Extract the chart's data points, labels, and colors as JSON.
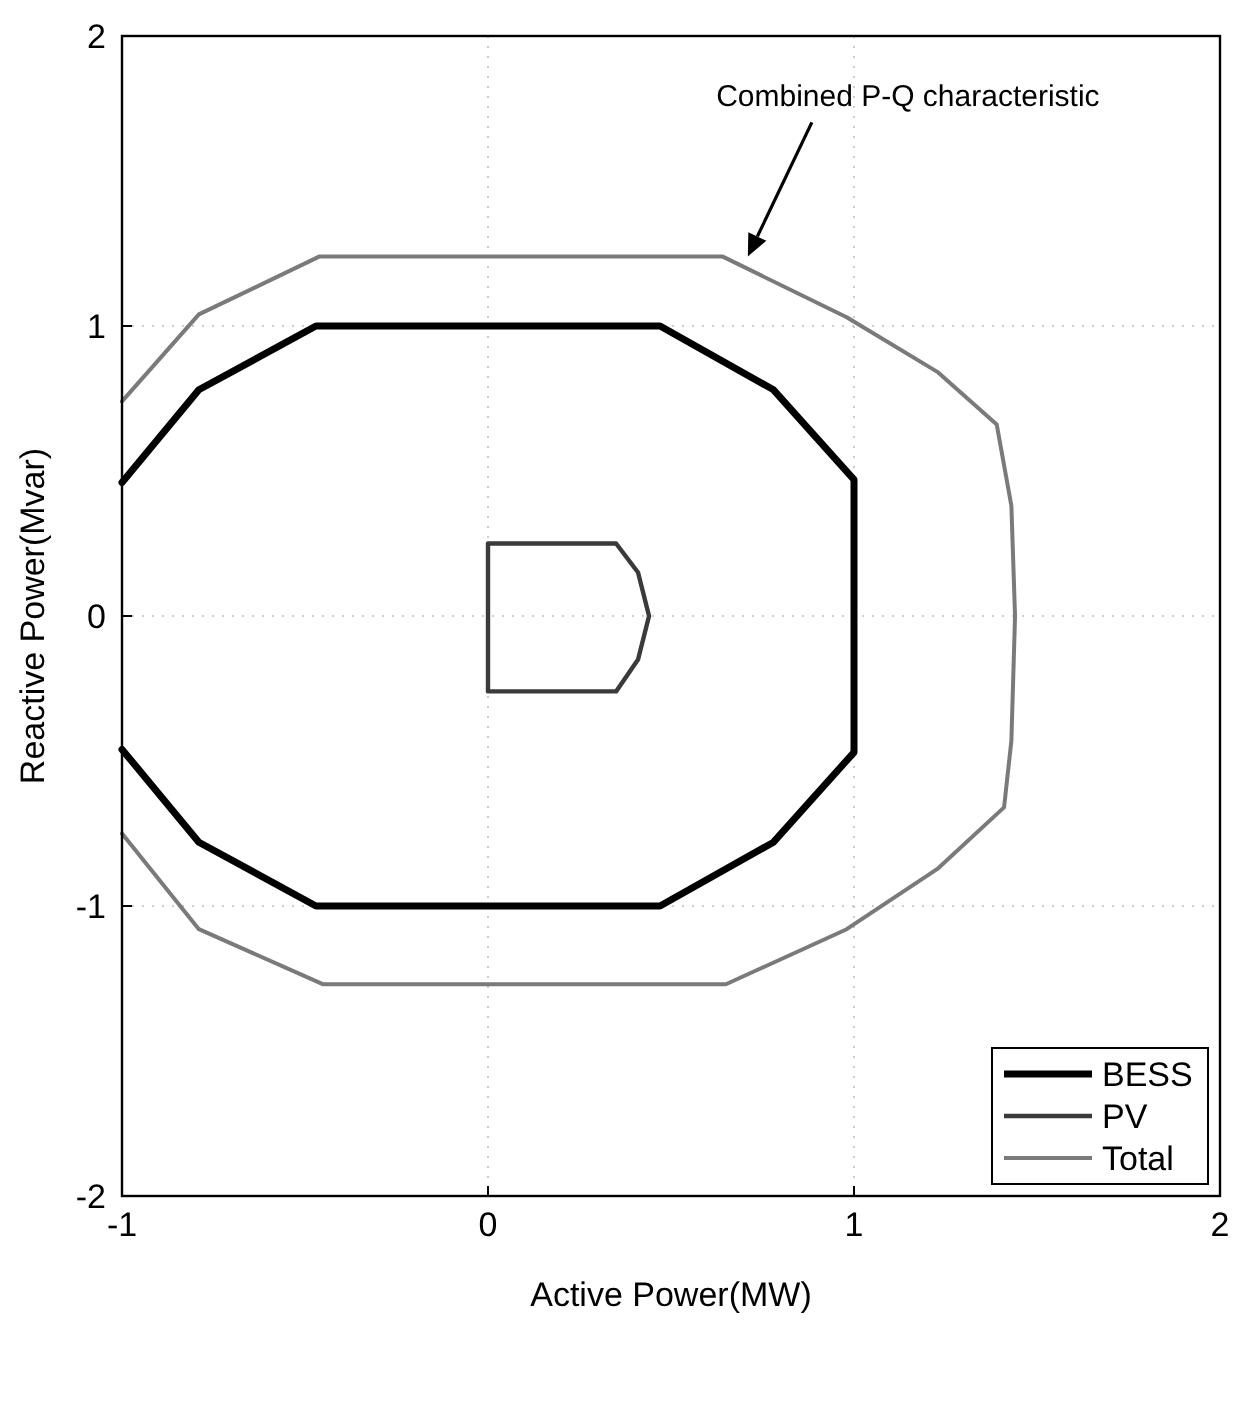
{
  "chart_data": {
    "type": "line",
    "xlabel": "Active Power(MW)",
    "ylabel": "Reactive Power(Mvar)",
    "xlim": [
      -1,
      2
    ],
    "ylim": [
      -2,
      2
    ],
    "xticks": [
      -1,
      0,
      1,
      2
    ],
    "yticks": [
      -2,
      -1,
      0,
      1,
      2
    ],
    "grid": true,
    "legend": "bottom right",
    "marker": "none",
    "line_style": "solid",
    "annotations": [
      "Combined P-Q characteristic"
    ],
    "series": [
      {
        "name": "BESS",
        "color": "#000000",
        "x": [
          -1,
          -0.79,
          -0.47,
          0.47,
          0.78,
          1,
          1,
          0.78,
          0.47,
          -0.47,
          -0.79,
          -1
        ],
        "values": [
          0.46,
          0.78,
          1,
          1,
          0.78,
          0.47,
          -0.47,
          -0.78,
          -1,
          -1,
          -0.78,
          -0.46
        ]
      },
      {
        "name": "PV",
        "color": "#3a3a3a",
        "x": [
          0,
          0,
          0.35,
          0.41,
          0.44,
          0.41,
          0.35,
          0,
          0
        ],
        "values": [
          0,
          -0.26,
          -0.26,
          -0.15,
          0,
          0.15,
          0.25,
          0.25,
          -0.26
        ]
      },
      {
        "name": "Total",
        "color": "#7a7a7a",
        "x": [
          -1,
          -0.79,
          -0.46,
          0.64,
          0.98,
          1.23,
          1.39,
          1.43,
          1.44,
          1.43,
          1.41,
          1.23,
          0.98,
          0.65,
          -0.45,
          -0.79,
          -1
        ],
        "values": [
          0.74,
          1.04,
          1.24,
          1.24,
          1.03,
          0.84,
          0.66,
          0.38,
          0,
          -0.43,
          -0.66,
          -0.87,
          -1.08,
          -1.27,
          -1.27,
          -1.08,
          -0.75
        ]
      }
    ]
  }
}
